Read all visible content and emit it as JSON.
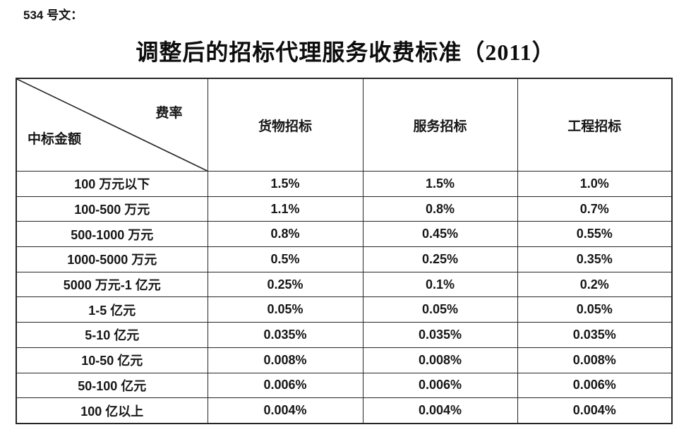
{
  "doc_number": "534 号文：",
  "title": "调整后的招标代理服务收费标准（2011）",
  "table": {
    "corner": {
      "top_right": "费率",
      "bottom_left": "中标金额"
    },
    "columns": [
      "货物招标",
      "服务招标",
      "工程招标"
    ],
    "rows": [
      {
        "label": "100 万元以下",
        "values": [
          "1.5%",
          "1.5%",
          "1.0%"
        ]
      },
      {
        "label": "100-500 万元",
        "values": [
          "1.1%",
          "0.8%",
          "0.7%"
        ]
      },
      {
        "label": "500-1000 万元",
        "values": [
          "0.8%",
          "0.45%",
          "0.55%"
        ]
      },
      {
        "label": "1000-5000 万元",
        "values": [
          "0.5%",
          "0.25%",
          "0.35%"
        ]
      },
      {
        "label": "5000 万元-1 亿元",
        "values": [
          "0.25%",
          "0.1%",
          "0.2%"
        ]
      },
      {
        "label": "1-5 亿元",
        "values": [
          "0.05%",
          "0.05%",
          "0.05%"
        ]
      },
      {
        "label": "5-10 亿元",
        "values": [
          "0.035%",
          "0.035%",
          "0.035%"
        ]
      },
      {
        "label": "10-50 亿元",
        "values": [
          "0.008%",
          "0.008%",
          "0.008%"
        ]
      },
      {
        "label": "50-100 亿元",
        "values": [
          "0.006%",
          "0.006%",
          "0.006%"
        ]
      },
      {
        "label": "100 亿以上",
        "values": [
          "0.004%",
          "0.004%",
          "0.004%"
        ]
      }
    ],
    "colors": {
      "border": "#262626",
      "text": "#161616",
      "background": "#ffffff"
    }
  }
}
